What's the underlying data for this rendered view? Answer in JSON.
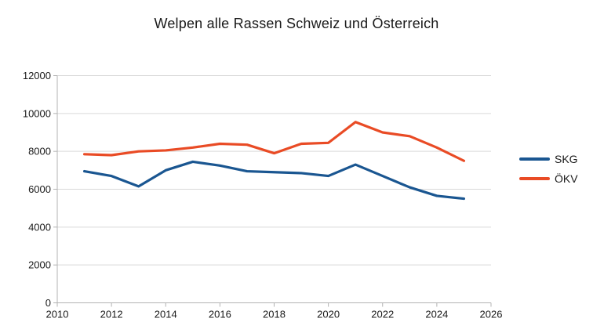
{
  "title": "Welpen alle Rassen Schweiz und Österreich",
  "legend": {
    "items": [
      {
        "label": "SKG",
        "color": "#1a5691"
      },
      {
        "label": "ÖKV",
        "color": "#e94b25"
      }
    ]
  },
  "chart_data": {
    "type": "line",
    "title": "Welpen alle Rassen Schweiz und Österreich",
    "x": [
      2011,
      2012,
      2013,
      2014,
      2015,
      2016,
      2017,
      2018,
      2019,
      2020,
      2021,
      2022,
      2023,
      2024,
      2025
    ],
    "series": [
      {
        "name": "SKG",
        "color": "#1a5691",
        "values": [
          6950,
          6700,
          6150,
          7000,
          7450,
          7250,
          6950,
          6900,
          6850,
          6700,
          7300,
          6700,
          6100,
          5650,
          5500
        ]
      },
      {
        "name": "ÖKV",
        "color": "#e94b25",
        "values": [
          7850,
          7800,
          8000,
          8050,
          8200,
          8400,
          8350,
          7900,
          8400,
          8450,
          9550,
          9000,
          8800,
          8200,
          7500
        ]
      }
    ],
    "xlabel": "",
    "ylabel": "",
    "xlim": [
      2010,
      2026
    ],
    "ylim": [
      0,
      12000
    ],
    "x_ticks": [
      2010,
      2012,
      2014,
      2016,
      2018,
      2020,
      2022,
      2024,
      2026
    ],
    "y_ticks": [
      0,
      2000,
      4000,
      6000,
      8000,
      10000,
      12000
    ],
    "grid": "horizontal",
    "legend_position": "right",
    "style": {
      "gridline_color": "#d9d9d9",
      "axis_color": "#b3b3b3",
      "label_color": "#1a1a1a",
      "line_width": 3.2
    }
  }
}
